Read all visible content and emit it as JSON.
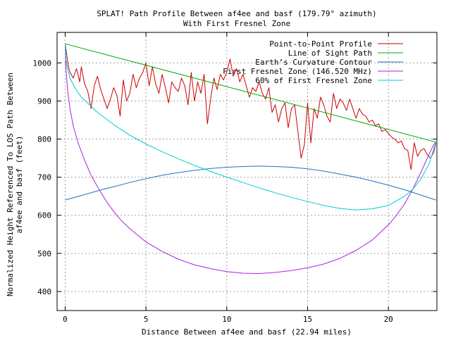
{
  "chart_data": {
    "type": "line",
    "title_line1": "SPLAT! Path Profile Between af4ee and basf (179.79° azimuth)",
    "title_line2": "With First Fresnel Zone",
    "xlabel": "Distance Between af4ee and basf (22.94 miles)",
    "ylabel_line1": "Normalized Height Referenced To LOS Path Between",
    "ylabel_line2": "af4ee and basf (feet)",
    "xlim": [
      -0.5,
      23
    ],
    "ylim": [
      350,
      1080
    ],
    "xticks": [
      0,
      5,
      10,
      15,
      20
    ],
    "yticks": [
      400,
      500,
      600,
      700,
      800,
      900,
      1000
    ],
    "grid": true,
    "legend_position": "top-right",
    "series": [
      {
        "name": "Point-to-Point Profile",
        "color": "#cc0000",
        "x": [
          0,
          0.1,
          0.2,
          0.3,
          0.5,
          0.7,
          0.9,
          1.0,
          1.2,
          1.4,
          1.6,
          1.8,
          2.0,
          2.2,
          2.4,
          2.6,
          2.8,
          3.0,
          3.2,
          3.4,
          3.6,
          3.8,
          4.0,
          4.2,
          4.4,
          4.6,
          4.8,
          5.0,
          5.2,
          5.4,
          5.6,
          5.8,
          6.0,
          6.2,
          6.4,
          6.6,
          6.8,
          7.0,
          7.2,
          7.4,
          7.6,
          7.8,
          8.0,
          8.2,
          8.4,
          8.6,
          8.8,
          9.0,
          9.2,
          9.4,
          9.6,
          9.8,
          10.0,
          10.2,
          10.4,
          10.6,
          10.8,
          11.0,
          11.2,
          11.4,
          11.6,
          11.8,
          12.0,
          12.2,
          12.4,
          12.6,
          12.8,
          13.0,
          13.2,
          13.4,
          13.6,
          13.8,
          14.0,
          14.2,
          14.4,
          14.6,
          14.8,
          15.0,
          15.2,
          15.4,
          15.6,
          15.8,
          16.0,
          16.2,
          16.4,
          16.6,
          16.8,
          17.0,
          17.2,
          17.4,
          17.6,
          17.8,
          18.0,
          18.2,
          18.4,
          18.6,
          18.8,
          19.0,
          19.2,
          19.4,
          19.6,
          19.8,
          20.0,
          20.2,
          20.4,
          20.6,
          20.8,
          21.0,
          21.2,
          21.4,
          21.6,
          21.8,
          22.0,
          22.2,
          22.4,
          22.6,
          22.8,
          22.94
        ],
        "y": [
          1050,
          1020,
          990,
          975,
          960,
          985,
          950,
          990,
          945,
          925,
          880,
          940,
          965,
          930,
          905,
          880,
          905,
          935,
          915,
          860,
          955,
          900,
          920,
          970,
          935,
          960,
          975,
          1000,
          940,
          990,
          945,
          920,
          970,
          935,
          895,
          950,
          935,
          925,
          960,
          940,
          890,
          975,
          900,
          950,
          920,
          970,
          840,
          905,
          960,
          930,
          970,
          955,
          975,
          1010,
          965,
          985,
          950,
          970,
          940,
          910,
          935,
          925,
          950,
          920,
          905,
          935,
          870,
          890,
          845,
          880,
          895,
          830,
          880,
          890,
          820,
          750,
          785,
          895,
          790,
          880,
          855,
          910,
          890,
          860,
          845,
          920,
          880,
          905,
          895,
          875,
          905,
          880,
          855,
          880,
          865,
          860,
          845,
          850,
          835,
          840,
          820,
          825,
          815,
          805,
          800,
          790,
          795,
          775,
          770,
          720,
          790,
          755,
          770,
          775,
          760,
          750,
          765,
          790
        ],
        "width": 1
      },
      {
        "name": "Line of Sight Path",
        "color": "#00aa00",
        "x": [
          0,
          22.94
        ],
        "y": [
          1050,
          792
        ],
        "width": 1
      },
      {
        "name": "Earth’s Curvature Contour",
        "color": "#1a73c6",
        "x": [
          0,
          1,
          2,
          3,
          4,
          5,
          6,
          7,
          8,
          9,
          10,
          11,
          12,
          13,
          14,
          15,
          16,
          17,
          18,
          19,
          20,
          21,
          22,
          22.94
        ],
        "y": [
          640,
          652,
          664,
          675,
          686,
          696,
          705,
          712,
          718,
          723,
          726,
          728,
          729,
          728,
          726,
          722,
          716,
          708,
          700,
          690,
          679,
          667,
          653,
          640
        ],
        "width": 1
      },
      {
        "name": "First Fresnel Zone (146.520 MHz)",
        "color": "#aa22dd",
        "x": [
          0,
          0.05,
          0.15,
          0.3,
          0.5,
          0.8,
          1.2,
          1.6,
          2,
          2.5,
          3,
          3.5,
          4,
          5,
          6,
          7,
          8,
          9,
          10,
          11,
          12,
          13,
          14,
          15,
          16,
          17,
          18,
          19,
          20,
          20.5,
          21,
          21.5,
          22,
          22.3,
          22.6,
          22.8,
          22.94
        ],
        "y": [
          1050,
          985,
          930,
          880,
          835,
          790,
          745,
          705,
          675,
          640,
          610,
          585,
          565,
          530,
          505,
          485,
          470,
          460,
          452,
          448,
          447,
          450,
          455,
          462,
          472,
          487,
          508,
          535,
          575,
          600,
          630,
          668,
          712,
          740,
          768,
          785,
          792
        ],
        "width": 1
      },
      {
        "name": "60% of First Fresnel Zone",
        "color": "#00cccc",
        "x": [
          0,
          0.05,
          0.15,
          0.3,
          0.6,
          1,
          1.5,
          2,
          3,
          4,
          5,
          6,
          7,
          8,
          9,
          10,
          11,
          12,
          13,
          14,
          15,
          16,
          17,
          18,
          19,
          20,
          21,
          21.5,
          22,
          22.5,
          22.94
        ],
        "y": [
          1050,
          1010,
          985,
          960,
          935,
          910,
          890,
          870,
          838,
          810,
          787,
          767,
          748,
          731,
          715,
          700,
          686,
          672,
          659,
          647,
          636,
          626,
          618,
          614,
          617,
          626,
          650,
          668,
          695,
          733,
          792
        ],
        "width": 1
      }
    ]
  }
}
